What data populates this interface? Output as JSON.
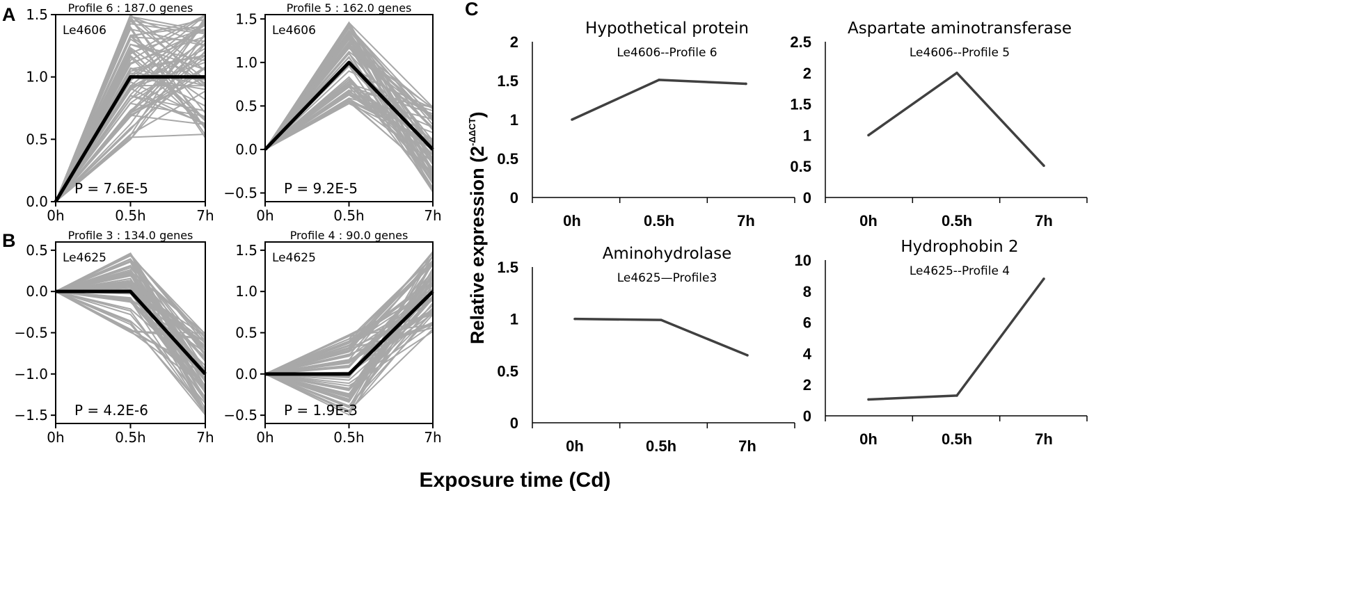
{
  "figure": {
    "panel_labels": [
      "A",
      "B",
      "C"
    ],
    "shared_xlabel": "Exposure time (Cd)",
    "ylabel_main": "Relative expression (2",
    "ylabel_sup": "-ΔΔCT",
    "ylabel_close": ")"
  },
  "colors": {
    "bundle": "#a8a8a8",
    "profile_line": "#000000",
    "qpcr_line": "#404040",
    "axis": "#000000"
  },
  "chart_data": [
    {
      "id": "stem-profile6",
      "type": "line",
      "panel": "A",
      "title": "Profile 6 : 187.0 genes",
      "cluster": "Le4606",
      "pvalue": "P = 7.6E-5",
      "categories": [
        "0h",
        "0.5h",
        "7h"
      ],
      "yticks": [
        "0.0",
        "0.5",
        "1.0",
        "1.5"
      ],
      "ytick_values": [
        0,
        0.5,
        1,
        1.5
      ],
      "ylim": [
        0,
        1.5
      ],
      "model_profile": [
        0,
        1,
        1
      ],
      "gene_band": {
        "mid_low": 0.5,
        "mid_high": 1.5,
        "end_low": 0.5,
        "end_high": 1.5
      }
    },
    {
      "id": "stem-profile5",
      "type": "line",
      "panel": "A",
      "title": "Profile 5 : 162.0 genes",
      "cluster": "Le4606",
      "pvalue": "P = 9.2E-5",
      "categories": [
        "0h",
        "0.5h",
        "7h"
      ],
      "yticks": [
        "−0.5",
        "0.0",
        "0.5",
        "1.0",
        "1.5"
      ],
      "ytick_values": [
        -0.5,
        0,
        0.5,
        1,
        1.5
      ],
      "ylim": [
        -0.6,
        1.55
      ],
      "model_profile": [
        0,
        1,
        0
      ],
      "gene_band": {
        "mid_low": 0.5,
        "mid_high": 1.5,
        "end_low": -0.5,
        "end_high": 0.5
      }
    },
    {
      "id": "stem-profile3",
      "type": "line",
      "panel": "B",
      "title": "Profile 3 : 134.0 genes",
      "cluster": "Le4625",
      "pvalue": "P = 4.2E-6",
      "categories": [
        "0h",
        "0.5h",
        "7h"
      ],
      "yticks": [
        "−1.5",
        "−1.0",
        "−0.5",
        "0.0",
        "0.5"
      ],
      "ytick_values": [
        -1.5,
        -1,
        -0.5,
        0,
        0.5
      ],
      "ylim": [
        -1.6,
        0.6
      ],
      "model_profile": [
        0,
        0,
        -1
      ],
      "gene_band": {
        "mid_low": -0.5,
        "mid_high": 0.5,
        "end_low": -1.5,
        "end_high": -0.5
      }
    },
    {
      "id": "stem-profile4",
      "type": "line",
      "panel": "B",
      "title": "Profile 4 : 90.0 genes",
      "cluster": "Le4625",
      "pvalue": "P = 1.9E-3",
      "categories": [
        "0h",
        "0.5h",
        "7h"
      ],
      "yticks": [
        "−0.5",
        "0.0",
        "0.5",
        "1.0",
        "1.5"
      ],
      "ytick_values": [
        -0.5,
        0,
        0.5,
        1,
        1.5
      ],
      "ylim": [
        -0.6,
        1.6
      ],
      "model_profile": [
        0,
        0,
        1
      ],
      "gene_band": {
        "mid_low": -0.5,
        "mid_high": 0.5,
        "end_low": 0.5,
        "end_high": 1.5
      }
    },
    {
      "id": "qpcr-hypothetical",
      "type": "line",
      "panel": "C",
      "title": "Hypothetical protein",
      "subtitle": "Le4606--Profile 6",
      "categories": [
        "0h",
        "0.5h",
        "7h"
      ],
      "values": [
        1.0,
        1.51,
        1.46
      ],
      "yticks": [
        "0",
        "0.5",
        "1",
        "1.5",
        "2"
      ],
      "ytick_values": [
        0,
        0.5,
        1,
        1.5,
        2
      ],
      "ylim": [
        0,
        2
      ]
    },
    {
      "id": "qpcr-aspartate",
      "type": "line",
      "panel": "C",
      "title": "Aspartate aminotransferase",
      "subtitle": "Le4606--Profile 5",
      "categories": [
        "0h",
        "0.5h",
        "7h"
      ],
      "values": [
        1.0,
        2.0,
        0.51
      ],
      "yticks": [
        "0",
        "0.5",
        "1",
        "1.5",
        "2",
        "2.5"
      ],
      "ytick_values": [
        0,
        0.5,
        1,
        1.5,
        2,
        2.5
      ],
      "ylim": [
        0,
        2.5
      ]
    },
    {
      "id": "qpcr-aminohydrolase",
      "type": "line",
      "panel": "C",
      "title": "Aminohydrolase",
      "subtitle": "Le4625—Profile3",
      "categories": [
        "0h",
        "0.5h",
        "7h"
      ],
      "values": [
        1.0,
        0.99,
        0.65
      ],
      "yticks": [
        "0",
        "0.5",
        "1",
        "1.5"
      ],
      "ytick_values": [
        0,
        0.5,
        1,
        1.5
      ],
      "ylim": [
        0,
        1.5
      ]
    },
    {
      "id": "qpcr-hydrophobin",
      "type": "line",
      "panel": "C",
      "title": "Hydrophobin 2",
      "subtitle": "Le4625--Profile 4",
      "categories": [
        "0h",
        "0.5h",
        "7h"
      ],
      "values": [
        1.05,
        1.3,
        8.8
      ],
      "yticks": [
        "0",
        "2",
        "4",
        "6",
        "8",
        "10"
      ],
      "ytick_values": [
        0,
        2,
        4,
        6,
        8,
        10
      ],
      "ylim": [
        0,
        10
      ]
    }
  ]
}
